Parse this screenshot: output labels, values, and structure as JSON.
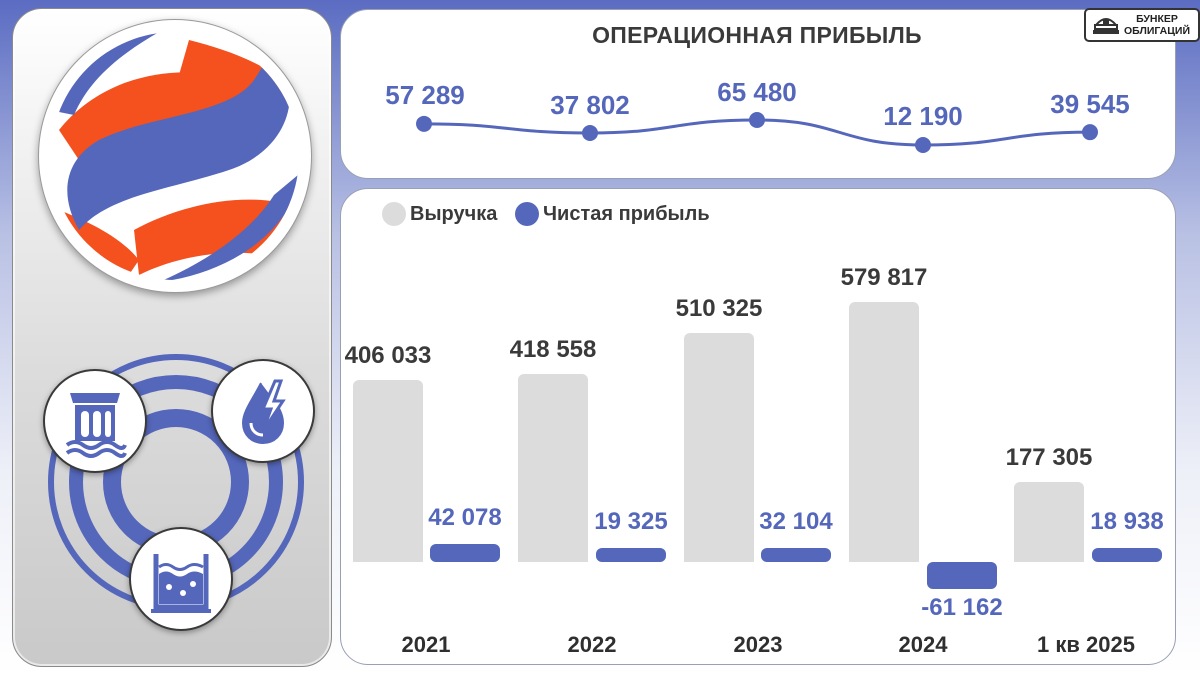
{
  "badge": {
    "line1": "БУНКЕР",
    "line2": "ОБЛИГАЦИЙ"
  },
  "colors": {
    "revenue": "#dcdcdc",
    "net_profit": "#5567bb",
    "logo_orange": "#f4511e",
    "logo_blue": "#5567bb"
  },
  "icons": [
    "hydro-dam-icon",
    "water-energy-drop-icon",
    "water-tank-icon"
  ],
  "chart_data": [
    {
      "type": "line",
      "title": "ОПЕРАЦИОННАЯ ПРИБЫЛЬ",
      "categories": [
        "2021",
        "2022",
        "2023",
        "2024",
        "1 кв 2025"
      ],
      "labels": [
        "57 289",
        "37 802",
        "65 480",
        "12 190",
        "39 545"
      ],
      "values": [
        57289,
        37802,
        65480,
        12190,
        39545
      ]
    },
    {
      "type": "bar",
      "categories": [
        "2021",
        "2022",
        "2023",
        "2024",
        "1 кв 2025"
      ],
      "legend": "top-left",
      "series": [
        {
          "name": "Выручка",
          "values": [
            406033,
            418558,
            510325,
            579817,
            177305
          ],
          "labels": [
            "406 033",
            "418 558",
            "510 325",
            "579 817",
            "177 305"
          ]
        },
        {
          "name": "Чистая прибыль",
          "values": [
            42078,
            19325,
            32104,
            -61162,
            18938
          ],
          "labels": [
            "42 078",
            "19 325",
            "32 104",
            "-61 162",
            "18 938"
          ]
        }
      ]
    }
  ]
}
